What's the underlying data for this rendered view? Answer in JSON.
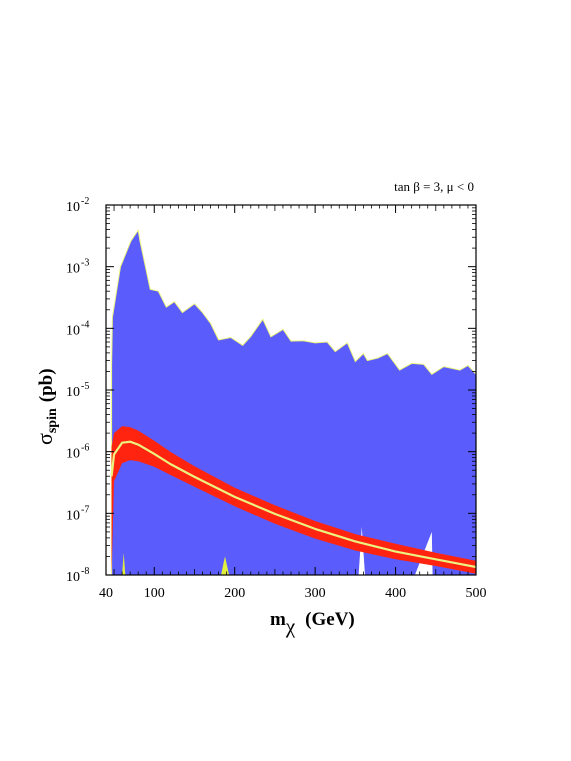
{
  "chart_data": {
    "type": "area",
    "annotation": "tan β = 3, μ < 0",
    "xlabel_main": "m",
    "xlabel_sub": "χ",
    "xlabel_unit": "(GeV)",
    "ylabel_main": "σ",
    "ylabel_sub": "spin",
    "ylabel_unit": "(pb)",
    "xlim": [
      40,
      500
    ],
    "ylim": [
      1e-08,
      0.01
    ],
    "y_scale": "log",
    "x_ticks": [
      40,
      100,
      200,
      300,
      400,
      500
    ],
    "x_tick_labels": [
      "40",
      "100",
      "200",
      "300",
      "400",
      "500"
    ],
    "y_ticks": [
      1e-08,
      1e-07,
      1e-06,
      1e-05,
      0.0001,
      0.001,
      0.01
    ],
    "y_tick_labels": [
      {
        "base": "10",
        "exp": "-8"
      },
      {
        "base": "10",
        "exp": "-7"
      },
      {
        "base": "10",
        "exp": "-6"
      },
      {
        "base": "10",
        "exp": "-5"
      },
      {
        "base": "10",
        "exp": "-4"
      },
      {
        "base": "10",
        "exp": "-3"
      },
      {
        "base": "10",
        "exp": "-2"
      }
    ],
    "grid": false,
    "colors": {
      "blue_region": "#5a5cfb",
      "red_band": "#ff2410",
      "central_line": "#ecf27e",
      "yellow_patch": "#dfef3c"
    },
    "blue_region_upper": [
      [
        47,
        2.5e-05
      ],
      [
        48,
        0.00015
      ],
      [
        58,
        0.001
      ],
      [
        71,
        0.0026
      ],
      [
        80,
        0.0039
      ],
      [
        82,
        0.0027
      ],
      [
        95,
        0.00043
      ],
      [
        105,
        0.0004
      ],
      [
        115,
        0.00022
      ],
      [
        125,
        0.00027
      ],
      [
        135,
        0.00018
      ],
      [
        150,
        0.00025
      ],
      [
        160,
        0.00018
      ],
      [
        170,
        0.00012
      ],
      [
        180,
        6.5e-05
      ],
      [
        195,
        7.1e-05
      ],
      [
        210,
        5.3e-05
      ],
      [
        220,
        7.4e-05
      ],
      [
        235,
        0.00014
      ],
      [
        245,
        7.3e-05
      ],
      [
        260,
        9.6e-05
      ],
      [
        270,
        6.2e-05
      ],
      [
        285,
        6.3e-05
      ],
      [
        300,
        5.8e-05
      ],
      [
        315,
        6e-05
      ],
      [
        325,
        4.2e-05
      ],
      [
        340,
        5.8e-05
      ],
      [
        350,
        2.9e-05
      ],
      [
        360,
        3.9e-05
      ],
      [
        365,
        3e-05
      ],
      [
        378,
        3.3e-05
      ],
      [
        390,
        3.9e-05
      ],
      [
        405,
        2.1e-05
      ],
      [
        420,
        2.7e-05
      ],
      [
        435,
        2.6e-05
      ],
      [
        445,
        1.8e-05
      ],
      [
        460,
        2.4e-05
      ],
      [
        480,
        2.1e-05
      ],
      [
        490,
        2.5e-05
      ],
      [
        500,
        1.8e-05
      ]
    ],
    "blue_region_gaps": [
      [
        [
          354,
          1e-08
        ],
        [
          358,
          6e-08
        ],
        [
          362,
          1e-08
        ]
      ],
      [
        [
          424,
          1e-08
        ],
        [
          445,
          5e-08
        ],
        [
          446,
          1e-08
        ]
      ]
    ],
    "yellow_patches": [
      [
        [
          60,
          1e-08
        ],
        [
          62,
          2.3e-08
        ],
        [
          64,
          1e-08
        ]
      ],
      [
        [
          183,
          1e-08
        ],
        [
          188,
          2e-08
        ],
        [
          193,
          1e-08
        ]
      ]
    ],
    "red_band": {
      "x": [
        47,
        50,
        60,
        70,
        80,
        100,
        120,
        150,
        200,
        250,
        300,
        350,
        400,
        450,
        500
      ],
      "upper": [
        1.2e-06,
        2e-06,
        2.6e-06,
        2.5e-06,
        2.2e-06,
        1.5e-06,
        1e-06,
        5.8e-07,
        2.6e-07,
        1.35e-07,
        7.5e-08,
        4.6e-08,
        3.2e-08,
        2.3e-08,
        1.7e-08
      ],
      "lower": [
        1e-08,
        3.3e-07,
        6.5e-07,
        7.3e-07,
        7e-07,
        5.7e-07,
        4.2e-07,
        2.7e-07,
        1.3e-07,
        6.8e-08,
        3.9e-08,
        2.5e-08,
        1.8e-08,
        1.4e-08,
        1.05e-08
      ]
    },
    "central_line": {
      "x": [
        47,
        50,
        60,
        70,
        80,
        100,
        120,
        150,
        200,
        250,
        300,
        350,
        400,
        450,
        500
      ],
      "y": [
        4e-07,
        9e-07,
        1.4e-06,
        1.45e-06,
        1.3e-06,
        9.2e-07,
        6.3e-07,
        3.9e-07,
        1.85e-07,
        9.8e-08,
        5.6e-08,
        3.5e-08,
        2.4e-08,
        1.8e-08,
        1.35e-08
      ]
    }
  }
}
